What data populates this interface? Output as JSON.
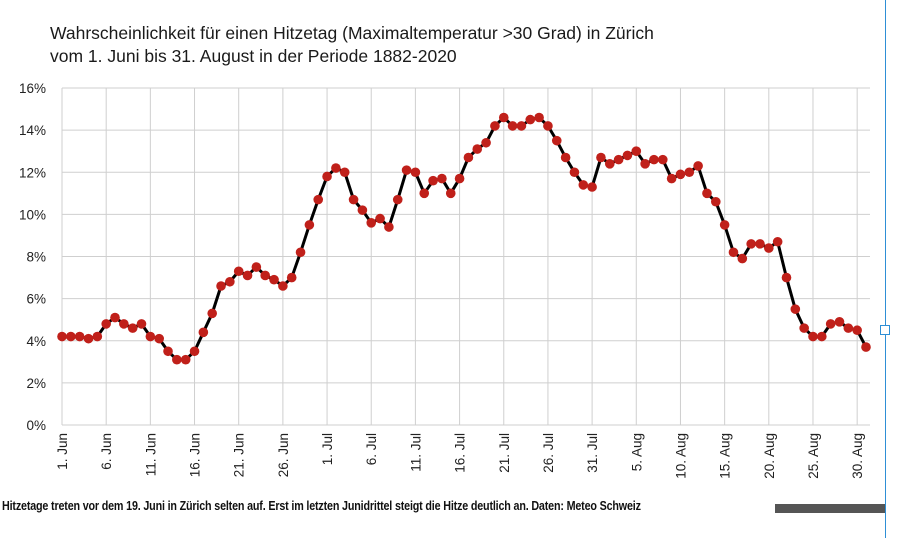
{
  "chart_data": {
    "type": "line",
    "title_line1": "Wahrscheinlichkeit für einen Hitzetag  (Maximaltemperatur  >30 Grad) in Zürich",
    "title_line2": "vom 1. Juni bis 31. August  in der Periode 1882-2020",
    "ylim": [
      0,
      16
    ],
    "y_ticks": [
      "0%",
      "2%",
      "4%",
      "6%",
      "8%",
      "10%",
      "12%",
      "14%",
      "16%"
    ],
    "x_tick_labels": [
      "1. Jun",
      "6. Jun",
      "11. Jun",
      "16. Jun",
      "21. Jun",
      "26. Jun",
      "1. Jul",
      "6. Jul",
      "11. Jul",
      "16. Jul",
      "21. Jul",
      "26. Jul",
      "31. Jul",
      "5. Aug",
      "10. Aug",
      "15. Aug",
      "20. Aug",
      "25. Aug",
      "30. Aug"
    ],
    "grid": true,
    "line_color": "#000000",
    "marker_color": "#c0201a",
    "values": [
      4.2,
      4.2,
      4.2,
      4.1,
      4.2,
      4.8,
      5.1,
      4.8,
      4.6,
      4.8,
      4.2,
      4.1,
      3.5,
      3.1,
      3.1,
      3.5,
      4.4,
      5.3,
      6.6,
      6.8,
      7.3,
      7.1,
      7.5,
      7.1,
      6.9,
      6.6,
      7.0,
      8.2,
      9.5,
      10.7,
      11.8,
      12.2,
      12.0,
      10.7,
      10.2,
      9.6,
      9.8,
      9.4,
      10.7,
      12.1,
      12.0,
      11.0,
      11.6,
      11.7,
      11.0,
      11.7,
      12.7,
      13.1,
      13.4,
      14.2,
      14.6,
      14.2,
      14.2,
      14.5,
      14.6,
      14.2,
      13.5,
      12.7,
      12.0,
      11.4,
      11.3,
      12.7,
      12.4,
      12.6,
      12.8,
      13.0,
      12.4,
      12.6,
      12.6,
      11.7,
      11.9,
      12.0,
      12.3,
      11.0,
      10.6,
      9.5,
      8.2,
      7.9,
      8.6,
      8.6,
      8.4,
      8.7,
      7.0,
      5.5,
      4.6,
      4.2,
      4.2,
      4.8,
      4.9,
      4.6,
      4.5,
      3.7
    ]
  },
  "caption": "Hitzetage treten vor dem 19. Juni in Zürich selten auf. Erst im letzten Junidrittel steigt die Hitze deutlich an. Daten: Meteo Schweiz"
}
